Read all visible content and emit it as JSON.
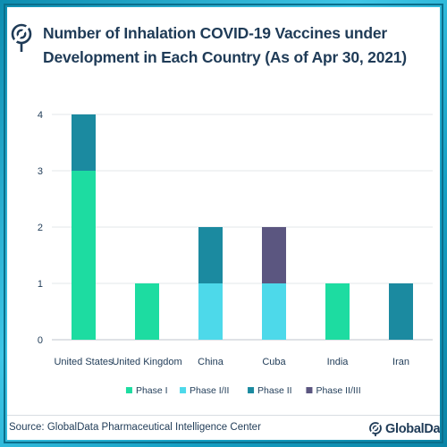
{
  "header": {
    "title": "Number of Inhalation COVID-19 Vaccines under Development in Each Country (As of Apr 30, 2021)",
    "icon": "globe-pin-icon"
  },
  "footer": {
    "source": "Source: GlobalData Pharmaceutical Intelligence Center",
    "logo_text": "GlobalData."
  },
  "colors": {
    "frame": "#1fa7c8",
    "title": "#1f3b57",
    "phase_1": "#1ddca1",
    "phase_1_2": "#4dd9ea",
    "phase_2": "#1b8aa0",
    "phase_2_3": "#5b5680"
  },
  "chart_data": {
    "type": "bar",
    "stacked": true,
    "categories": [
      "United States",
      "United Kingdom",
      "China",
      "Cuba",
      "India",
      "Iran"
    ],
    "series": [
      {
        "name": "Phase I",
        "color": "#1ddca1",
        "values": [
          3,
          1,
          0,
          0,
          1,
          0
        ]
      },
      {
        "name": "Phase I/II",
        "color": "#4dd9ea",
        "values": [
          0,
          0,
          1,
          1,
          0,
          0
        ]
      },
      {
        "name": "Phase II",
        "color": "#1b8aa0",
        "values": [
          1,
          0,
          1,
          0,
          0,
          1
        ]
      },
      {
        "name": "Phase II/III",
        "color": "#5b5680",
        "values": [
          0,
          0,
          0,
          1,
          0,
          0
        ]
      }
    ],
    "ylim": [
      0,
      4
    ],
    "yticks": [
      "0",
      "1",
      "2",
      "3",
      "4"
    ],
    "xlabel": "",
    "ylabel": "",
    "grid": true,
    "legend_position": "bottom"
  }
}
